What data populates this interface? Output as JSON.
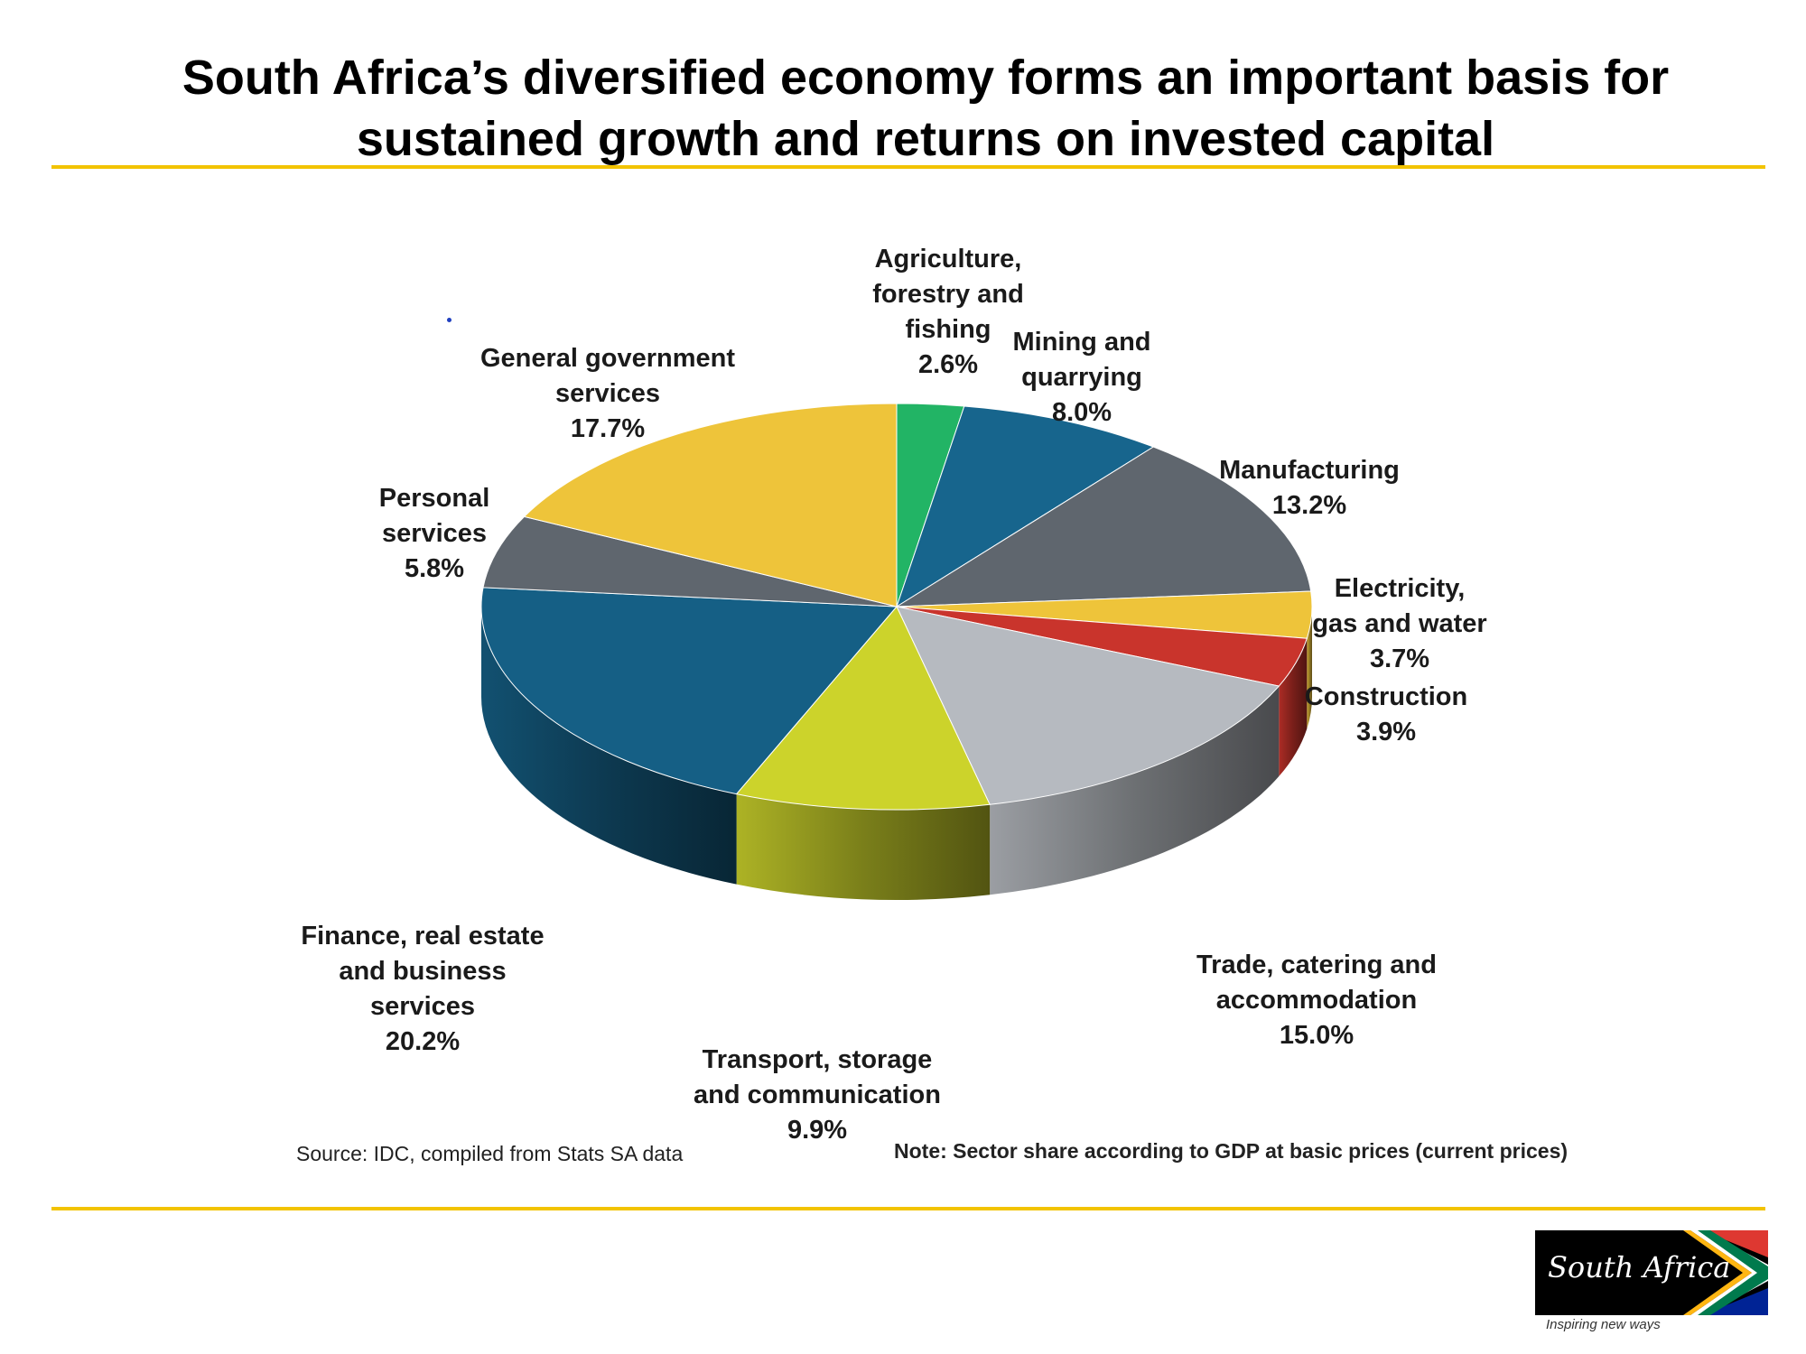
{
  "slide": {
    "title": "South Africa’s diversified economy forms an important basis for sustained growth and returns on invested capital",
    "source": "Source: IDC, compiled from Stats SA data",
    "note": "Note: Sector share according to GDP at basic prices (current prices)"
  },
  "brand": {
    "name": "South Africa",
    "tagline": "Inspiring new ways",
    "flag_colors": [
      "#de3831",
      "#007a4d",
      "#002395",
      "#ffb612",
      "#000000",
      "#ffffff"
    ]
  },
  "chart_data": {
    "type": "pie",
    "style": "3d",
    "title": "",
    "slices": [
      {
        "label_lines": [
          "Agriculture,",
          "forestry and",
          "fishing"
        ],
        "value_text": "2.6%",
        "value": 2.6,
        "color": "#22b465"
      },
      {
        "label_lines": [
          "Mining and",
          "quarrying"
        ],
        "value_text": "8.0%",
        "value": 8.0,
        "color": "#17658d"
      },
      {
        "label_lines": [
          "Manufacturing"
        ],
        "value_text": "13.2%",
        "value": 13.2,
        "color": "#5f666e"
      },
      {
        "label_lines": [
          "Electricity,",
          "gas and water"
        ],
        "value_text": "3.7%",
        "value": 3.7,
        "color": "#eec43a"
      },
      {
        "label_lines": [
          "Construction"
        ],
        "value_text": "3.9%",
        "value": 3.9,
        "color": "#c9342c"
      },
      {
        "label_lines": [
          "Trade, catering and",
          "accommodation"
        ],
        "value_text": "15.0%",
        "value": 15.0,
        "color": "#b6bac0"
      },
      {
        "label_lines": [
          "Transport, storage",
          "and communication"
        ],
        "value_text": "9.9%",
        "value": 9.9,
        "color": "#ccd32b"
      },
      {
        "label_lines": [
          "Finance, real estate",
          "and business",
          "services"
        ],
        "value_text": "20.2%",
        "value": 20.2,
        "color": "#155f85"
      },
      {
        "label_lines": [
          "Personal",
          "services"
        ],
        "value_text": "5.8%",
        "value": 5.8,
        "color": "#5f666e"
      },
      {
        "label_lines": [
          "General government",
          "services"
        ],
        "value_text": "17.7%",
        "value": 17.7,
        "color": "#eec43a"
      }
    ]
  }
}
